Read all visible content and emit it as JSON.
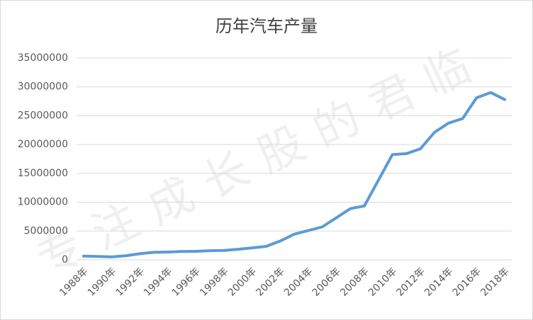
{
  "chart_data": {
    "type": "line",
    "title": "历年汽车产量",
    "watermark": "专注成长股的君临",
    "categories": [
      "1988年",
      null,
      "1990年",
      null,
      "1992年",
      null,
      "1994年",
      null,
      "1996年",
      null,
      "1998年",
      null,
      "2000年",
      null,
      "2002年",
      null,
      "2004年",
      null,
      "2006年",
      null,
      "2008年",
      null,
      "2010年",
      null,
      "2012年",
      null,
      "2014年",
      null,
      "2016年",
      null,
      "2018年"
    ],
    "series": [
      {
        "name": "汽车产量",
        "color": "#5b9bd5",
        "values": [
          650000,
          590000,
          510000,
          710000,
          1060000,
          1300000,
          1350000,
          1450000,
          1480000,
          1580000,
          1630000,
          1830000,
          2070000,
          2340000,
          3250000,
          4440000,
          5070000,
          5710000,
          7280000,
          8880000,
          9350000,
          13790000,
          18260000,
          18420000,
          19270000,
          22120000,
          23720000,
          24500000,
          28120000,
          29020000,
          27810000
        ]
      }
    ],
    "ylim": [
      0,
      35000000
    ],
    "yticks": [
      0,
      5000000,
      10000000,
      15000000,
      20000000,
      25000000,
      30000000,
      35000000
    ],
    "grid": true
  }
}
